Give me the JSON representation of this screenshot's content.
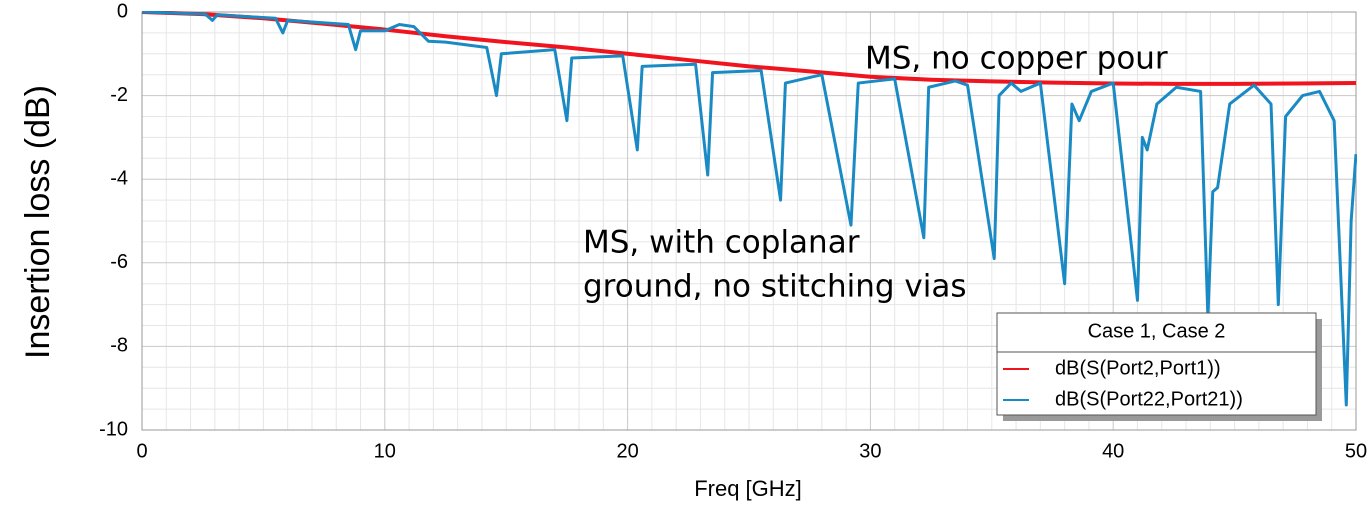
{
  "chart_data": {
    "type": "line",
    "x_label": "Freq [GHz]",
    "y_label": "Insertion loss (dB)",
    "xlim": [
      0,
      50
    ],
    "xticks": [
      0,
      10,
      20,
      30,
      40,
      50
    ],
    "ylim": [
      -10,
      0
    ],
    "yticks": [
      -10,
      -8,
      -6,
      -4,
      -2,
      0
    ],
    "grid": true,
    "legend_title": "Case 1, Case 2",
    "legend": "lower right",
    "annotations": [
      {
        "text": "MS, no copper pour",
        "color": "#e8262b"
      },
      {
        "text": "MS, with coplanar",
        "color": "#1a8ac4"
      },
      {
        "text": "ground, no stitching vias",
        "color": "#1a8ac4"
      }
    ],
    "series": [
      {
        "name": "dB(S(Port2,Port1))",
        "color": "#f0141e",
        "x": [
          0,
          2.5,
          5,
          7.5,
          10,
          12.5,
          15,
          17.5,
          20,
          22.5,
          25,
          27.5,
          30,
          32.5,
          35,
          37.5,
          40,
          42.5,
          45,
          47.5,
          50
        ],
        "values": [
          0,
          -0.05,
          -0.15,
          -0.28,
          -0.42,
          -0.58,
          -0.72,
          -0.85,
          -1.0,
          -1.15,
          -1.3,
          -1.42,
          -1.55,
          -1.62,
          -1.66,
          -1.69,
          -1.71,
          -1.72,
          -1.72,
          -1.71,
          -1.7
        ]
      },
      {
        "name": "dB(S(Port22,Port21))",
        "color": "#1a8ac4",
        "x": [
          0,
          2.6,
          2.9,
          3.1,
          5.5,
          5.8,
          6.0,
          8.5,
          8.8,
          9.0,
          10,
          10.6,
          11.2,
          11.8,
          12.5,
          14.2,
          14.6,
          14.8,
          17.0,
          17.5,
          17.7,
          19.8,
          20.4,
          20.6,
          22.8,
          23.3,
          23.5,
          25.5,
          26.3,
          26.5,
          28,
          29.2,
          29.5,
          31,
          32.2,
          32.4,
          33.5,
          34,
          35.1,
          35.3,
          35.8,
          36.2,
          37,
          38,
          38.3,
          38.6,
          39.1,
          40,
          41,
          41.2,
          41.4,
          41.8,
          42.6,
          43.6,
          43.9,
          44.1,
          44.3,
          44.8,
          45.8,
          46.5,
          46.8,
          47.1,
          47.8,
          48.5,
          49.1,
          49.6,
          49.8,
          50
        ],
        "values": [
          0,
          -0.05,
          -0.2,
          -0.07,
          -0.15,
          -0.5,
          -0.2,
          -0.3,
          -0.9,
          -0.45,
          -0.45,
          -0.3,
          -0.35,
          -0.7,
          -0.72,
          -0.85,
          -2.0,
          -1.0,
          -0.9,
          -2.6,
          -1.1,
          -1.05,
          -3.3,
          -1.3,
          -1.25,
          -3.9,
          -1.45,
          -1.4,
          -4.5,
          -1.7,
          -1.5,
          -5.1,
          -1.7,
          -1.6,
          -5.4,
          -1.8,
          -1.65,
          -1.75,
          -5.9,
          -2.0,
          -1.7,
          -1.9,
          -1.7,
          -6.5,
          -2.2,
          -2.6,
          -1.9,
          -1.7,
          -6.9,
          -3.0,
          -3.3,
          -2.2,
          -1.8,
          -1.9,
          -7.3,
          -4.3,
          -4.2,
          -2.2,
          -1.75,
          -2.2,
          -7.0,
          -2.5,
          -2.0,
          -1.9,
          -2.6,
          -9.4,
          -5.0,
          -3.4
        ]
      }
    ]
  }
}
